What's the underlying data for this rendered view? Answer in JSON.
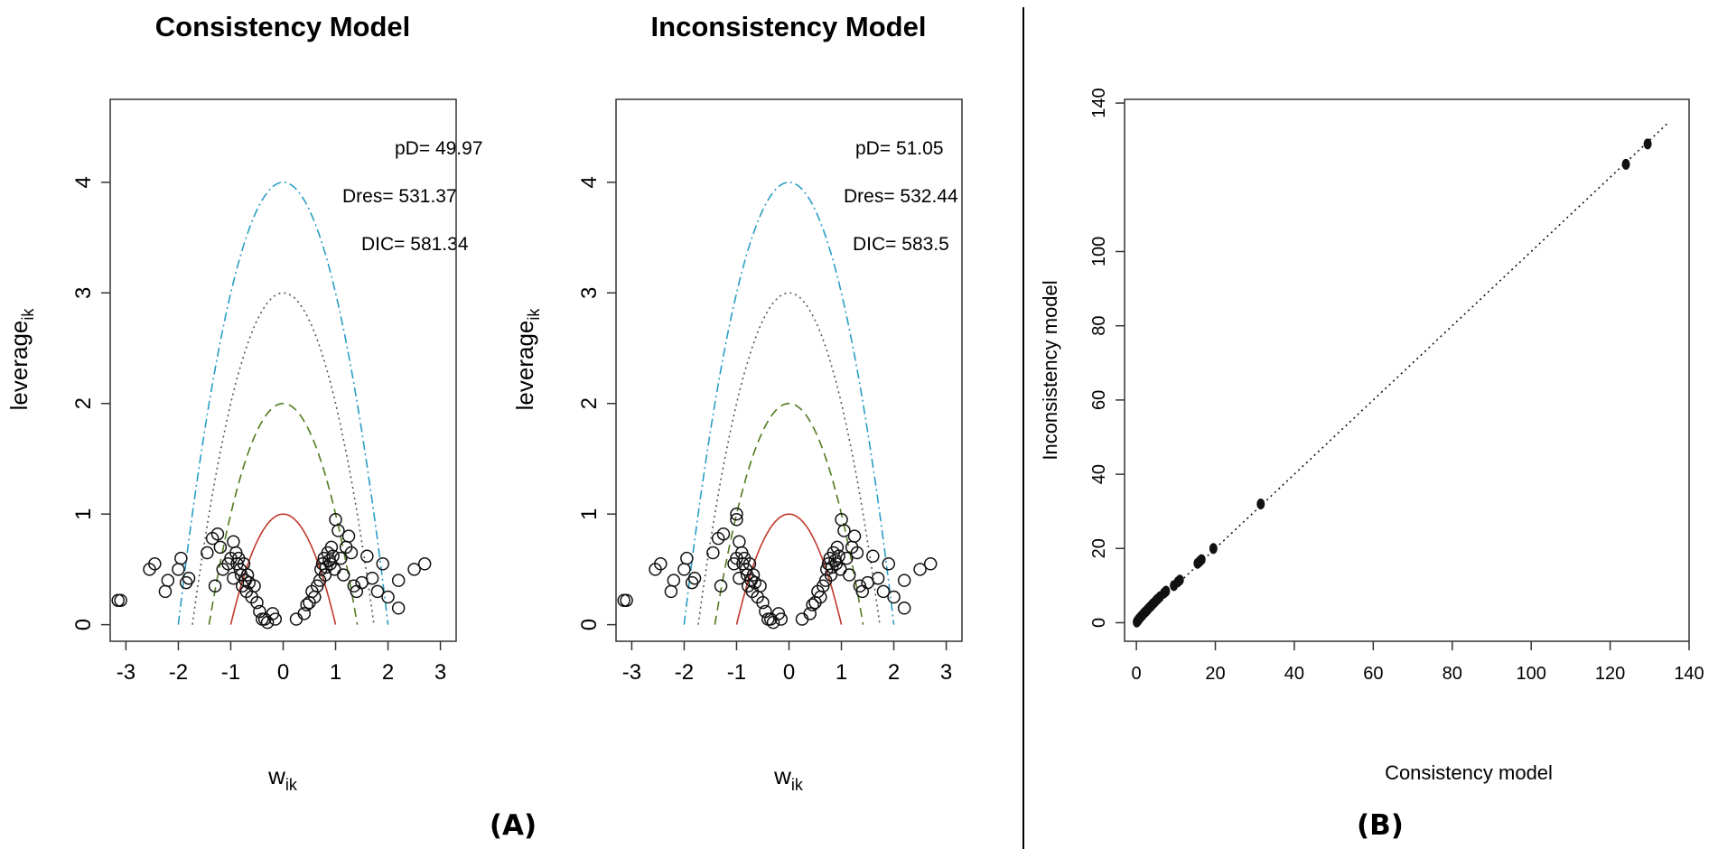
{
  "panel_a_caption": "(A)",
  "panel_b_caption": "(B)",
  "chart_data": [
    {
      "type": "scatter",
      "title": "Consistency Model",
      "xlabel": "w",
      "xlabel_sub": "ik",
      "ylabel": "leverage",
      "ylabel_sub": "ik",
      "xlim": [
        -3.3,
        3.3
      ],
      "ylim": [
        -0.15,
        4.75
      ],
      "xticks": [
        -3,
        -2,
        -1,
        0,
        1,
        2,
        3
      ],
      "yticks": [
        0,
        1,
        2,
        3,
        4
      ],
      "annotations": [
        "pD= 49.97",
        "Dres= 531.37",
        "DIC= 581.34"
      ],
      "curves": [
        {
          "name": "leverage = 1 - w^2",
          "c": 1,
          "color": "#c0392b",
          "style": "solid"
        },
        {
          "name": "leverage = 2 - w^2",
          "c": 2,
          "color": "#4f7a1c",
          "style": "dashed"
        },
        {
          "name": "leverage = 3 - w^2",
          "c": 3,
          "color": "#555555",
          "style": "dotted"
        },
        {
          "name": "leverage = 4 - w^2",
          "c": 4,
          "color": "#2a9dc4",
          "style": "dashdot"
        }
      ],
      "points": [
        [
          -3.15,
          0.22
        ],
        [
          -3.1,
          0.22
        ],
        [
          -2.55,
          0.5
        ],
        [
          -2.45,
          0.55
        ],
        [
          -2.25,
          0.3
        ],
        [
          -2.2,
          0.4
        ],
        [
          -2.0,
          0.5
        ],
        [
          -1.95,
          0.6
        ],
        [
          -1.85,
          0.38
        ],
        [
          -1.8,
          0.42
        ],
        [
          -1.45,
          0.65
        ],
        [
          -1.35,
          0.78
        ],
        [
          -1.3,
          0.35
        ],
        [
          -1.25,
          0.82
        ],
        [
          -1.2,
          0.7
        ],
        [
          -1.15,
          0.5
        ],
        [
          -1.05,
          0.55
        ],
        [
          -1.0,
          0.6
        ],
        [
          -0.95,
          0.42
        ],
        [
          -0.95,
          0.75
        ],
        [
          -0.9,
          0.65
        ],
        [
          -0.88,
          0.55
        ],
        [
          -0.85,
          0.6
        ],
        [
          -0.82,
          0.5
        ],
        [
          -0.8,
          0.45
        ],
        [
          -0.78,
          0.35
        ],
        [
          -0.75,
          0.55
        ],
        [
          -0.72,
          0.4
        ],
        [
          -0.7,
          0.3
        ],
        [
          -0.68,
          0.45
        ],
        [
          -0.65,
          0.38
        ],
        [
          -0.6,
          0.25
        ],
        [
          -0.55,
          0.35
        ],
        [
          -0.5,
          0.2
        ],
        [
          -0.45,
          0.12
        ],
        [
          -0.4,
          0.05
        ],
        [
          -0.35,
          0.05
        ],
        [
          -0.3,
          0.02
        ],
        [
          -0.2,
          0.1
        ],
        [
          -0.15,
          0.05
        ],
        [
          0.25,
          0.05
        ],
        [
          0.4,
          0.1
        ],
        [
          0.45,
          0.18
        ],
        [
          0.5,
          0.2
        ],
        [
          0.55,
          0.3
        ],
        [
          0.6,
          0.25
        ],
        [
          0.65,
          0.35
        ],
        [
          0.7,
          0.4
        ],
        [
          0.72,
          0.5
        ],
        [
          0.75,
          0.55
        ],
        [
          0.78,
          0.6
        ],
        [
          0.8,
          0.45
        ],
        [
          0.82,
          0.52
        ],
        [
          0.85,
          0.65
        ],
        [
          0.88,
          0.58
        ],
        [
          0.9,
          0.55
        ],
        [
          0.92,
          0.7
        ],
        [
          0.95,
          0.62
        ],
        [
          0.98,
          0.5
        ],
        [
          1.0,
          0.95
        ],
        [
          1.05,
          0.85
        ],
        [
          1.1,
          0.6
        ],
        [
          1.15,
          0.45
        ],
        [
          1.2,
          0.7
        ],
        [
          1.25,
          0.8
        ],
        [
          1.3,
          0.65
        ],
        [
          1.35,
          0.35
        ],
        [
          1.4,
          0.3
        ],
        [
          1.5,
          0.38
        ],
        [
          1.6,
          0.62
        ],
        [
          1.7,
          0.42
        ],
        [
          1.8,
          0.3
        ],
        [
          1.9,
          0.55
        ],
        [
          2.0,
          0.25
        ],
        [
          2.2,
          0.4
        ],
        [
          2.2,
          0.15
        ],
        [
          2.5,
          0.5
        ],
        [
          2.7,
          0.55
        ]
      ]
    },
    {
      "type": "scatter",
      "title": "Inconsistency Model",
      "xlabel": "w",
      "xlabel_sub": "ik",
      "ylabel": "leverage",
      "ylabel_sub": "ik",
      "xlim": [
        -3.3,
        3.3
      ],
      "ylim": [
        -0.15,
        4.75
      ],
      "xticks": [
        -3,
        -2,
        -1,
        0,
        1,
        2,
        3
      ],
      "yticks": [
        0,
        1,
        2,
        3,
        4
      ],
      "annotations": [
        "pD= 51.05",
        "Dres= 532.44",
        "DIC= 583.5"
      ],
      "curves": [
        {
          "name": "leverage = 1 - w^2",
          "c": 1,
          "color": "#c0392b",
          "style": "solid"
        },
        {
          "name": "leverage = 2 - w^2",
          "c": 2,
          "color": "#4f7a1c",
          "style": "dashed"
        },
        {
          "name": "leverage = 3 - w^2",
          "c": 3,
          "color": "#555555",
          "style": "dotted"
        },
        {
          "name": "leverage = 4 - w^2",
          "c": 4,
          "color": "#2a9dc4",
          "style": "dashdot"
        }
      ],
      "points": [
        [
          -3.15,
          0.22
        ],
        [
          -3.1,
          0.22
        ],
        [
          -2.55,
          0.5
        ],
        [
          -2.45,
          0.55
        ],
        [
          -2.25,
          0.3
        ],
        [
          -2.2,
          0.4
        ],
        [
          -2.0,
          0.5
        ],
        [
          -1.95,
          0.6
        ],
        [
          -1.85,
          0.38
        ],
        [
          -1.8,
          0.42
        ],
        [
          -1.45,
          0.65
        ],
        [
          -1.35,
          0.78
        ],
        [
          -1.3,
          0.35
        ],
        [
          -1.25,
          0.82
        ],
        [
          -1.0,
          1.0
        ],
        [
          -1.0,
          0.95
        ],
        [
          -1.05,
          0.55
        ],
        [
          -1.0,
          0.6
        ],
        [
          -0.95,
          0.42
        ],
        [
          -0.95,
          0.75
        ],
        [
          -0.9,
          0.65
        ],
        [
          -0.88,
          0.55
        ],
        [
          -0.85,
          0.6
        ],
        [
          -0.82,
          0.5
        ],
        [
          -0.8,
          0.45
        ],
        [
          -0.78,
          0.35
        ],
        [
          -0.75,
          0.55
        ],
        [
          -0.72,
          0.4
        ],
        [
          -0.7,
          0.3
        ],
        [
          -0.68,
          0.45
        ],
        [
          -0.65,
          0.38
        ],
        [
          -0.6,
          0.25
        ],
        [
          -0.55,
          0.35
        ],
        [
          -0.5,
          0.2
        ],
        [
          -0.45,
          0.12
        ],
        [
          -0.4,
          0.05
        ],
        [
          -0.35,
          0.05
        ],
        [
          -0.3,
          0.02
        ],
        [
          -0.2,
          0.1
        ],
        [
          -0.15,
          0.05
        ],
        [
          0.25,
          0.05
        ],
        [
          0.4,
          0.1
        ],
        [
          0.45,
          0.18
        ],
        [
          0.5,
          0.2
        ],
        [
          0.55,
          0.3
        ],
        [
          0.6,
          0.25
        ],
        [
          0.65,
          0.35
        ],
        [
          0.7,
          0.4
        ],
        [
          0.72,
          0.5
        ],
        [
          0.75,
          0.55
        ],
        [
          0.78,
          0.6
        ],
        [
          0.8,
          0.45
        ],
        [
          0.82,
          0.52
        ],
        [
          0.85,
          0.65
        ],
        [
          0.88,
          0.58
        ],
        [
          0.9,
          0.55
        ],
        [
          0.92,
          0.7
        ],
        [
          0.95,
          0.62
        ],
        [
          0.98,
          0.5
        ],
        [
          1.0,
          0.95
        ],
        [
          1.05,
          0.85
        ],
        [
          1.1,
          0.6
        ],
        [
          1.15,
          0.45
        ],
        [
          1.2,
          0.7
        ],
        [
          1.25,
          0.8
        ],
        [
          1.3,
          0.65
        ],
        [
          1.35,
          0.35
        ],
        [
          1.4,
          0.3
        ],
        [
          1.5,
          0.38
        ],
        [
          1.6,
          0.62
        ],
        [
          1.7,
          0.42
        ],
        [
          1.8,
          0.3
        ],
        [
          1.9,
          0.55
        ],
        [
          2.0,
          0.25
        ],
        [
          2.2,
          0.4
        ],
        [
          2.2,
          0.15
        ],
        [
          2.5,
          0.5
        ],
        [
          2.7,
          0.55
        ]
      ]
    },
    {
      "type": "scatter",
      "title": "",
      "xlabel": "Consistency model",
      "ylabel": "Inconsistency model",
      "xlim": [
        -3,
        140
      ],
      "ylim": [
        -5,
        141
      ],
      "xticks": [
        0,
        20,
        40,
        60,
        80,
        100,
        120,
        140
      ],
      "yticks": [
        0,
        20,
        40,
        60,
        80,
        100,
        140
      ],
      "reference_line": {
        "from": [
          0,
          0
        ],
        "to": [
          135,
          135
        ],
        "style": "dotted"
      },
      "points": [
        [
          0.1,
          0.2
        ],
        [
          0.2,
          0.4
        ],
        [
          0.3,
          0.5
        ],
        [
          0.5,
          0.7
        ],
        [
          0.6,
          1.0
        ],
        [
          0.8,
          1.2
        ],
        [
          1.0,
          1.4
        ],
        [
          1.1,
          1.6
        ],
        [
          1.3,
          1.8
        ],
        [
          1.5,
          2.0
        ],
        [
          1.7,
          2.3
        ],
        [
          1.9,
          2.5
        ],
        [
          2.1,
          2.8
        ],
        [
          2.4,
          3.0
        ],
        [
          2.6,
          3.3
        ],
        [
          2.9,
          3.6
        ],
        [
          3.1,
          3.9
        ],
        [
          3.4,
          4.2
        ],
        [
          3.7,
          4.5
        ],
        [
          4.0,
          4.9
        ],
        [
          4.3,
          5.2
        ],
        [
          4.6,
          5.5
        ],
        [
          5.0,
          6.0
        ],
        [
          5.4,
          6.4
        ],
        [
          6.0,
          7.0
        ],
        [
          7.0,
          8.0
        ],
        [
          7.5,
          8.5
        ],
        [
          9.5,
          10.0
        ],
        [
          10.5,
          11.0
        ],
        [
          11.0,
          11.5
        ],
        [
          15.5,
          16.0
        ],
        [
          16.0,
          16.5
        ],
        [
          16.5,
          17.0
        ],
        [
          19.5,
          20.0
        ],
        [
          31.5,
          32.0
        ],
        [
          124.0,
          123.5
        ],
        [
          129.5,
          129.0
        ]
      ]
    }
  ]
}
